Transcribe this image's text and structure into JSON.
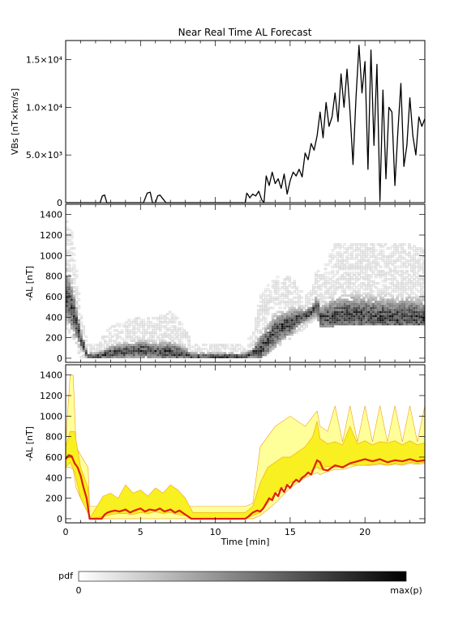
{
  "chart_data": [
    {
      "type": "line",
      "title": "Near Real Time AL Forecast",
      "ylabel": "VBs [nT×km/s]",
      "ylim": [
        0,
        17000
      ],
      "xlim": [
        0,
        24
      ],
      "yticks": [
        {
          "value": 0,
          "label": "0"
        },
        {
          "value": 5000,
          "label": "5.0×10³"
        },
        {
          "value": 10000,
          "label": "1.0×10⁴"
        },
        {
          "value": 15000,
          "label": "1.5×10⁴"
        }
      ],
      "series": [
        {
          "color": "#000000",
          "x": [
            0,
            2.3,
            2.45,
            2.6,
            2.75,
            5.2,
            5.45,
            5.65,
            5.8,
            6.0,
            6.15,
            6.3,
            6.5,
            6.7,
            8.5,
            12.0,
            12.1,
            12.2,
            12.3,
            12.5,
            12.7,
            12.9,
            13.1,
            13.25,
            13.4,
            13.6,
            13.8,
            14.0,
            14.2,
            14.4,
            14.6,
            14.8,
            15.0,
            15.2,
            15.4,
            15.6,
            15.8,
            16.0,
            16.2,
            16.4,
            16.6,
            16.8,
            17.0,
            17.2,
            17.4,
            17.6,
            17.8,
            18.0,
            18.2,
            18.4,
            18.6,
            18.8,
            19.0,
            19.2,
            19.4,
            19.6,
            19.8,
            20.0,
            20.2,
            20.4,
            20.6,
            20.8,
            21.0,
            21.2,
            21.4,
            21.6,
            21.8,
            22.0,
            22.2,
            22.4,
            22.6,
            22.8,
            23.0,
            23.2,
            23.4,
            23.6,
            23.8,
            24.0
          ],
          "y": [
            0,
            0,
            700,
            800,
            0,
            0,
            1000,
            1100,
            0,
            0,
            700,
            800,
            400,
            0,
            0,
            0,
            1000,
            800,
            500,
            900,
            700,
            1200,
            300,
            0,
            2800,
            1800,
            3200,
            2000,
            2500,
            1500,
            3000,
            900,
            2300,
            3200,
            2800,
            3500,
            2700,
            5200,
            4500,
            6200,
            5500,
            7000,
            9500,
            6800,
            10500,
            8000,
            9000,
            11500,
            8500,
            13500,
            10000,
            14000,
            9500,
            4000,
            11000,
            16500,
            11500,
            14800,
            3500,
            16000,
            6000,
            14500,
            200,
            11800,
            2500,
            10000,
            9500,
            1800,
            7500,
            12500,
            3800,
            6000,
            11000,
            7000,
            5000,
            9000,
            8000,
            8800
          ]
        }
      ]
    },
    {
      "type": "heatmap",
      "ylabel": "-AL [nT]",
      "ylim": [
        -40,
        1500
      ],
      "xlim": [
        0,
        24
      ],
      "yticks": [
        0,
        200,
        400,
        600,
        800,
        1000,
        1200,
        1400
      ],
      "note_source": "pdf of forecast -AL per time bin; darkest cell traces the most probable value",
      "envelope_x": [
        0,
        0.5,
        1.0,
        1.5,
        2.0,
        3.0,
        4.0,
        5.0,
        6.0,
        7.0,
        8.0,
        8.5,
        12.0,
        12.5,
        13.0,
        13.5,
        14.0,
        14.5,
        15.0,
        15.5,
        16.0,
        16.5,
        16.8,
        17.0,
        18.0,
        19.0,
        20.0,
        21.0,
        22.0,
        23.0,
        24.0
      ],
      "envelope_mode": [
        620,
        450,
        180,
        0,
        0,
        40,
        60,
        70,
        55,
        50,
        30,
        0,
        0,
        40,
        80,
        150,
        250,
        300,
        330,
        380,
        400,
        450,
        500,
        380,
        400,
        420,
        410,
        400,
        390,
        400,
        390
      ],
      "envelope_upper": [
        1400,
        1200,
        450,
        120,
        120,
        300,
        350,
        400,
        380,
        450,
        300,
        120,
        120,
        250,
        600,
        700,
        800,
        750,
        800,
        700,
        600,
        650,
        900,
        800,
        1100,
        1100,
        1100,
        1100,
        1100,
        1100,
        1050
      ],
      "envelope_lower": [
        300,
        200,
        0,
        0,
        0,
        0,
        0,
        0,
        0,
        0,
        0,
        0,
        0,
        0,
        0,
        50,
        100,
        150,
        200,
        250,
        300,
        350,
        400,
        300,
        320,
        330,
        340,
        330,
        330,
        330,
        330
      ]
    },
    {
      "type": "area",
      "ylabel": "-AL [nT]",
      "xlabel": "Time [min]",
      "ylim": [
        -40,
        1500
      ],
      "xlim": [
        0,
        24
      ],
      "yticks": [
        0,
        200,
        400,
        600,
        800,
        1000,
        1200,
        1400
      ],
      "xticks": [
        0,
        5,
        10,
        15,
        20
      ],
      "series": [
        {
          "kind": "band",
          "color": "#ffff99",
          "x": [
            0,
            0.3,
            0.5,
            0.7,
            1.0,
            1.5,
            1.6,
            8.5,
            8.6,
            12.0,
            12.5,
            13.0,
            14.0,
            15.0,
            16.0,
            16.8,
            17.0,
            17.5,
            18.0,
            18.5,
            19.0,
            19.5,
            20.0,
            20.5,
            21.0,
            21.5,
            22.0,
            22.5,
            23.0,
            23.5,
            24.0
          ],
          "upper": [
            750,
            1400,
            1400,
            700,
            620,
            500,
            120,
            120,
            120,
            120,
            150,
            700,
            900,
            1000,
            900,
            1050,
            900,
            850,
            1100,
            750,
            1100,
            750,
            1100,
            750,
            1100,
            750,
            1100,
            750,
            1100,
            750,
            1100
          ],
          "lower": [
            500,
            500,
            480,
            300,
            200,
            50,
            0,
            0,
            0,
            0,
            0,
            30,
            150,
            300,
            400,
            450,
            430,
            460,
            480,
            480,
            500,
            520,
            520,
            520,
            530,
            520,
            530,
            520,
            540,
            530,
            540
          ]
        },
        {
          "kind": "band",
          "color": "#f8f020",
          "x": [
            0,
            0.3,
            0.6,
            1.0,
            1.5,
            1.6,
            2.5,
            3.0,
            3.5,
            4.0,
            4.5,
            5.0,
            5.5,
            6.0,
            6.5,
            7.0,
            7.5,
            8.0,
            8.5,
            12.0,
            12.5,
            13.0,
            13.5,
            14.0,
            14.5,
            15.0,
            15.5,
            16.0,
            16.5,
            16.8,
            17.0,
            17.5,
            18.0,
            18.5,
            19.0,
            19.5,
            20.0,
            20.5,
            21.0,
            21.5,
            22.0,
            22.5,
            23.0,
            23.5,
            24.0
          ],
          "upper": [
            700,
            850,
            850,
            500,
            300,
            0,
            220,
            250,
            200,
            330,
            250,
            280,
            220,
            300,
            250,
            330,
            280,
            200,
            60,
            60,
            120,
            350,
            500,
            550,
            600,
            600,
            650,
            700,
            800,
            950,
            780,
            730,
            750,
            720,
            900,
            730,
            760,
            720,
            750,
            740,
            760,
            720,
            760,
            720,
            740
          ],
          "lower": [
            500,
            550,
            450,
            200,
            50,
            0,
            20,
            40,
            50,
            50,
            40,
            60,
            50,
            70,
            50,
            60,
            40,
            30,
            0,
            0,
            30,
            60,
            150,
            250,
            300,
            350,
            380,
            420,
            480,
            500,
            480,
            510,
            500,
            510,
            530,
            520,
            520,
            530,
            540,
            520,
            540,
            530,
            550,
            540,
            550
          ]
        },
        {
          "kind": "line",
          "color": "#e02000",
          "x": [
            0,
            0.2,
            0.4,
            0.6,
            0.8,
            1.0,
            1.2,
            1.4,
            1.6,
            1.8,
            2.0,
            2.2,
            2.4,
            2.6,
            2.8,
            3.0,
            3.3,
            3.6,
            4.0,
            4.3,
            4.6,
            5.0,
            5.3,
            5.6,
            6.0,
            6.3,
            6.6,
            7.0,
            7.3,
            7.6,
            8.0,
            8.2,
            8.4,
            8.6,
            12.0,
            12.2,
            12.5,
            12.8,
            13.0,
            13.2,
            13.4,
            13.6,
            13.8,
            14.0,
            14.2,
            14.4,
            14.6,
            14.8,
            15.0,
            15.2,
            15.4,
            15.6,
            15.8,
            16.0,
            16.2,
            16.4,
            16.6,
            16.8,
            17.0,
            17.2,
            17.5,
            18.0,
            18.5,
            19.0,
            19.5,
            20.0,
            20.5,
            21.0,
            21.5,
            22.0,
            22.5,
            23.0,
            23.5,
            24.0
          ],
          "y": [
            580,
            620,
            610,
            540,
            500,
            420,
            300,
            200,
            0,
            0,
            0,
            0,
            0,
            40,
            60,
            70,
            80,
            70,
            90,
            60,
            80,
            100,
            70,
            90,
            80,
            100,
            70,
            90,
            60,
            80,
            40,
            20,
            0,
            0,
            0,
            20,
            60,
            80,
            70,
            100,
            150,
            200,
            180,
            250,
            220,
            300,
            260,
            330,
            300,
            350,
            380,
            360,
            400,
            420,
            450,
            430,
            500,
            570,
            550,
            480,
            470,
            520,
            500,
            540,
            560,
            580,
            560,
            580,
            550,
            570,
            560,
            580,
            560,
            570
          ]
        }
      ]
    }
  ],
  "colorbar": {
    "label": "pdf",
    "min_label": "0",
    "max_label": "max(p)"
  }
}
